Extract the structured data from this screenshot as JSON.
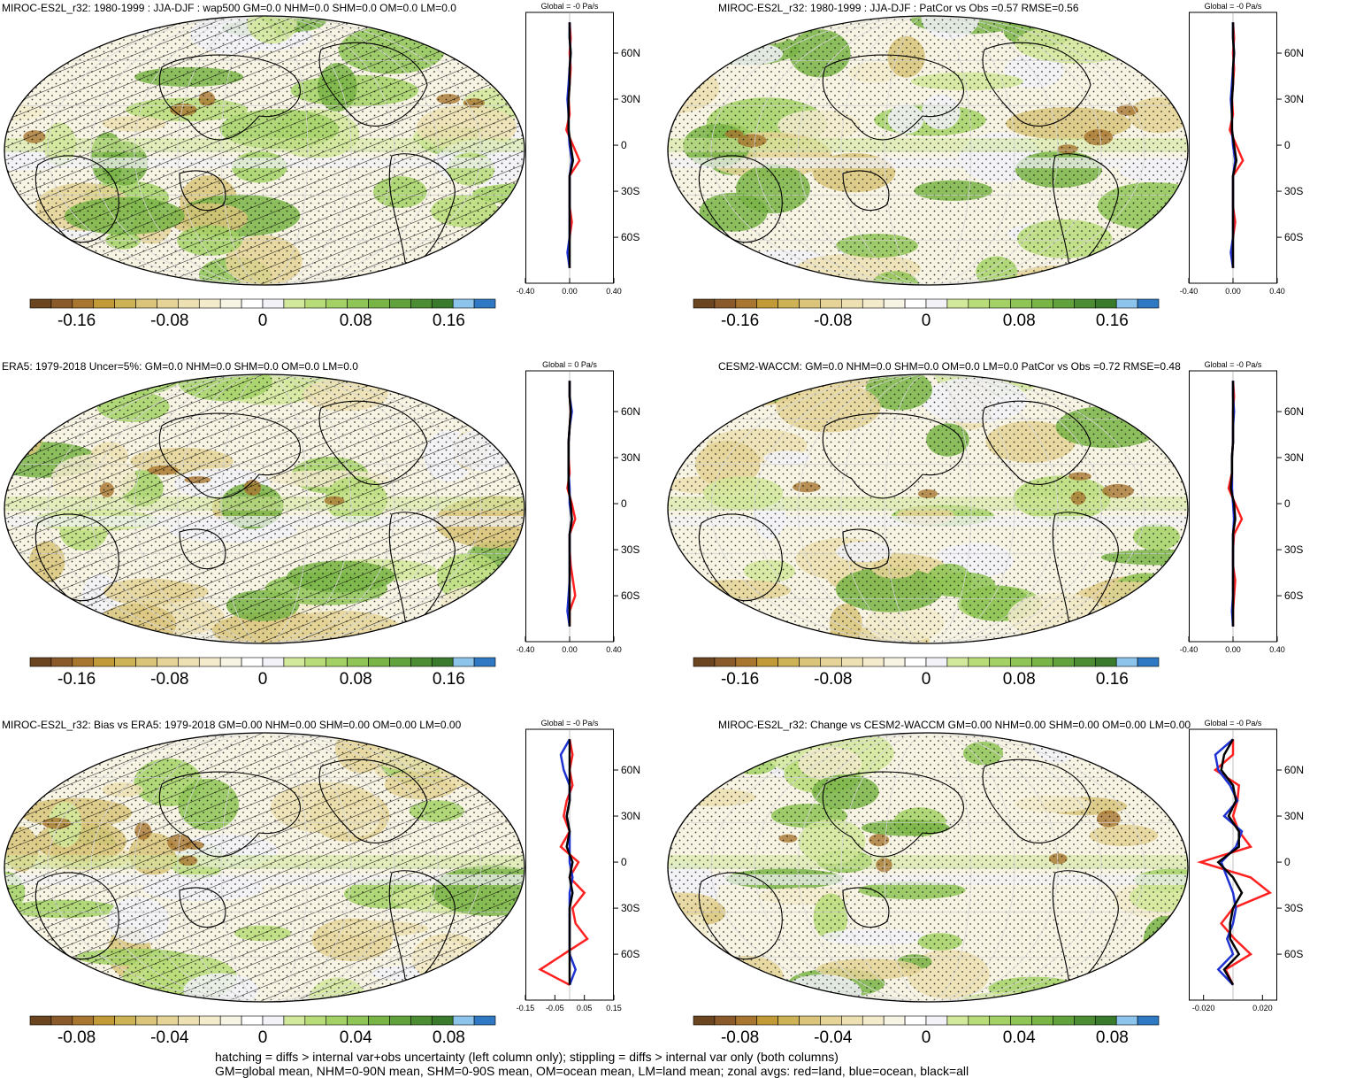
{
  "colors": {
    "scale": [
      "#6b4420",
      "#8a5a2a",
      "#a8762f",
      "#c29a38",
      "#cdb256",
      "#d9c47a",
      "#e5d397",
      "#ede0b2",
      "#f3ebcc",
      "#f8f4e4",
      "#ffffff",
      "#f2f2f8",
      "#d2e89a",
      "#b8dc78",
      "#a3d165",
      "#8fc456",
      "#79b447",
      "#62a23c",
      "#4c8c33",
      "#3a7a2c",
      "#8dc4ec",
      "#2f78c4"
    ],
    "land_line": "#ff2020",
    "ocean_line": "#1e32d2",
    "all_line": "#000000"
  },
  "footer": {
    "line1": "hatching = diffs > internal var+obs uncertainty (left column only); stippling = diffs > internal var only (both columns)",
    "line2": "GM=global mean, NHM=0-90N mean, SHM=0-90S mean, OM=ocean mean, LM=land mean; zonal avgs: red=land, blue=ocean, black=all"
  },
  "chart_data": [
    {
      "type": "heatmap",
      "title": "MIROC-ES2L_r32: 1980-1999 : JJA-DJF : wap500 GM=0.0 NHM=0.0 SHM=0.0 OM=0.0 LM=0.0",
      "colorbar_ticks": [
        "-0.16",
        "-0.08",
        "0",
        "0.08",
        "0.16"
      ],
      "colorbar_range": [
        -0.2,
        0.2
      ],
      "hatching": true,
      "zonal": {
        "title": "Global = -0 Pa/s",
        "lat_ticks": [
          "60N",
          "30N",
          "0",
          "30S",
          "60S"
        ],
        "x_ticks": [
          "-0.40",
          "0.00",
          "0.40"
        ],
        "xlim": [
          -0.4,
          0.4
        ],
        "lat": [
          80,
          70,
          60,
          50,
          40,
          30,
          20,
          10,
          0,
          -10,
          -20,
          -30,
          -40,
          -50,
          -60,
          -70,
          -80
        ],
        "land": [
          0.0,
          0.01,
          0.0,
          0.01,
          0.0,
          -0.01,
          0.0,
          -0.03,
          0.03,
          0.09,
          0.0,
          0.0,
          0.0,
          0.02,
          0.0,
          -0.01,
          0.0
        ],
        "ocean": [
          0.0,
          0.0,
          0.01,
          0.0,
          -0.01,
          -0.02,
          -0.01,
          -0.01,
          0.0,
          0.02,
          0.0,
          0.0,
          0.0,
          0.0,
          0.0,
          -0.02,
          0.0
        ],
        "all": [
          0.0,
          0.0,
          0.01,
          0.0,
          0.0,
          -0.01,
          -0.01,
          -0.01,
          0.01,
          0.03,
          0.0,
          0.0,
          0.0,
          0.0,
          0.0,
          0.0,
          0.0
        ]
      }
    },
    {
      "type": "heatmap",
      "title": "MIROC-ES2L_r32: 1980-1999 : JJA-DJF : PatCor vs Obs =0.57 RMSE=0.56",
      "colorbar_ticks": [
        "-0.16",
        "-0.08",
        "0",
        "0.08",
        "0.16"
      ],
      "colorbar_range": [
        -0.2,
        0.2
      ],
      "hatching": false,
      "zonal": {
        "title": "Global = -0 Pa/s",
        "lat_ticks": [
          "60N",
          "30N",
          "0",
          "30S",
          "60S"
        ],
        "x_ticks": [
          "-0.40",
          "0.00",
          "0.40"
        ],
        "xlim": [
          -0.4,
          0.4
        ],
        "lat": [
          80,
          70,
          60,
          50,
          40,
          30,
          20,
          10,
          0,
          -10,
          -20,
          -30,
          -40,
          -50,
          -60,
          -70,
          -80
        ],
        "land": [
          0.0,
          0.01,
          0.0,
          0.01,
          0.0,
          -0.01,
          0.0,
          -0.03,
          0.03,
          0.09,
          0.0,
          0.0,
          0.0,
          0.02,
          0.0,
          -0.01,
          0.0
        ],
        "ocean": [
          0.0,
          0.0,
          0.01,
          0.0,
          -0.01,
          -0.02,
          -0.01,
          -0.01,
          0.0,
          0.02,
          0.0,
          0.0,
          0.0,
          0.0,
          0.0,
          -0.02,
          0.0
        ],
        "all": [
          0.0,
          0.0,
          0.01,
          0.0,
          0.0,
          -0.01,
          -0.01,
          -0.01,
          0.01,
          0.03,
          0.0,
          0.0,
          0.0,
          0.0,
          0.0,
          0.0,
          0.0
        ]
      }
    },
    {
      "type": "heatmap",
      "title": "ERA5: 1979-2018 Uncer=5%: GM=0.0 NHM=0.0 SHM=0.0 OM=0.0 LM=0.0",
      "colorbar_ticks": [
        "-0.16",
        "-0.08",
        "0",
        "0.08",
        "0.16"
      ],
      "colorbar_range": [
        -0.2,
        0.2
      ],
      "hatching": true,
      "zonal": {
        "title": "Global = 0 Pa/s",
        "lat_ticks": [
          "60N",
          "30N",
          "0",
          "30S",
          "60S"
        ],
        "x_ticks": [
          "-0.40",
          "0.00",
          "0.40"
        ],
        "xlim": [
          -0.4,
          0.4
        ],
        "lat": [
          80,
          70,
          60,
          50,
          40,
          30,
          20,
          10,
          0,
          -10,
          -20,
          -30,
          -40,
          -50,
          -60,
          -70,
          -80
        ],
        "land": [
          0.0,
          0.0,
          0.01,
          0.0,
          -0.01,
          -0.01,
          0.0,
          -0.02,
          0.02,
          0.05,
          0.0,
          0.0,
          0.01,
          0.03,
          0.05,
          0.0,
          0.0
        ],
        "ocean": [
          0.0,
          0.0,
          0.02,
          0.0,
          -0.01,
          -0.01,
          -0.01,
          0.0,
          0.0,
          0.02,
          0.0,
          0.0,
          0.0,
          0.0,
          -0.01,
          -0.02,
          0.0
        ],
        "all": [
          0.0,
          0.0,
          0.01,
          0.0,
          -0.01,
          -0.01,
          -0.01,
          -0.01,
          0.01,
          0.02,
          0.0,
          0.0,
          0.0,
          0.0,
          0.0,
          0.0,
          0.0
        ]
      }
    },
    {
      "type": "heatmap",
      "title": "CESM2-WACCM: GM=0.0 NHM=0.0 SHM=0.0 OM=0.0 LM=0.0 PatCor vs Obs =0.72 RMSE=0.48",
      "colorbar_ticks": [
        "-0.16",
        "-0.08",
        "0",
        "0.08",
        "0.16"
      ],
      "colorbar_range": [
        -0.2,
        0.2
      ],
      "hatching": false,
      "zonal": {
        "title": "Global = -0 Pa/s",
        "lat_ticks": [
          "60N",
          "30N",
          "0",
          "30S",
          "60S"
        ],
        "x_ticks": [
          "-0.40",
          "0.00",
          "0.40"
        ],
        "xlim": [
          -0.4,
          0.4
        ],
        "lat": [
          80,
          70,
          60,
          50,
          40,
          30,
          20,
          10,
          0,
          -10,
          -20,
          -30,
          -40,
          -50,
          -60,
          -70,
          -80
        ],
        "land": [
          0.0,
          0.01,
          0.0,
          0.0,
          0.0,
          -0.01,
          -0.01,
          -0.04,
          0.02,
          0.08,
          0.01,
          0.0,
          0.0,
          0.02,
          0.01,
          0.0,
          0.0
        ],
        "ocean": [
          0.0,
          0.0,
          0.01,
          0.0,
          0.0,
          -0.01,
          -0.01,
          -0.01,
          0.0,
          0.01,
          0.0,
          0.0,
          0.0,
          0.0,
          0.0,
          -0.01,
          0.0
        ],
        "all": [
          0.0,
          0.0,
          0.0,
          0.0,
          0.0,
          -0.01,
          -0.01,
          -0.02,
          0.01,
          0.02,
          0.0,
          0.0,
          0.0,
          0.0,
          0.0,
          0.0,
          0.0
        ]
      }
    },
    {
      "type": "heatmap",
      "title": "MIROC-ES2L_r32: Bias vs ERA5: 1979-2018 GM=0.00 NHM=0.00 SHM=0.00 OM=0.00 LM=0.00",
      "colorbar_ticks": [
        "-0.08",
        "-0.04",
        "0",
        "0.04",
        "0.08"
      ],
      "colorbar_range": [
        -0.1,
        0.1
      ],
      "hatching": true,
      "zonal": {
        "title": "Global = -0 Pa/s",
        "lat_ticks": [
          "60N",
          "30N",
          "0",
          "30S",
          "60S"
        ],
        "x_ticks": [
          "-0.15",
          "-0.05",
          "0.05",
          "0.15"
        ],
        "xlim": [
          -0.15,
          0.15
        ],
        "lat": [
          80,
          70,
          60,
          50,
          40,
          30,
          20,
          10,
          0,
          -10,
          -20,
          -30,
          -40,
          -50,
          -60,
          -70,
          -80
        ],
        "land": [
          0.0,
          0.01,
          0.0,
          0.01,
          -0.01,
          -0.02,
          0.0,
          -0.03,
          0.03,
          0.0,
          0.05,
          0.01,
          0.02,
          0.06,
          -0.02,
          -0.1,
          0.0
        ],
        "ocean": [
          0.0,
          -0.03,
          -0.02,
          0.0,
          0.0,
          -0.01,
          0.0,
          0.0,
          0.0,
          0.01,
          0.0,
          0.0,
          0.0,
          0.0,
          0.0,
          0.02,
          0.0
        ],
        "all": [
          0.0,
          0.0,
          0.0,
          0.0,
          0.0,
          -0.01,
          0.0,
          -0.01,
          0.01,
          0.0,
          0.01,
          0.0,
          0.0,
          0.0,
          0.0,
          0.0,
          0.0
        ]
      }
    },
    {
      "type": "heatmap",
      "title": "MIROC-ES2L_r32: Change vs CESM2-WACCM GM=0.00 NHM=0.00 SHM=0.00 OM=0.00 LM=0.00",
      "colorbar_ticks": [
        "-0.08",
        "-0.04",
        "0",
        "0.04",
        "0.08"
      ],
      "colorbar_range": [
        -0.1,
        0.1
      ],
      "hatching": false,
      "zonal": {
        "title": "Global = -0 Pa/s",
        "lat_ticks": [
          "60N",
          "30N",
          "0",
          "30S",
          "60S"
        ],
        "x_ticks": [
          "-0.020",
          "0.020"
        ],
        "xlim": [
          -0.03,
          0.03
        ],
        "lat": [
          80,
          70,
          60,
          50,
          40,
          30,
          20,
          10,
          0,
          -10,
          -20,
          -30,
          -40,
          -50,
          -60,
          -70,
          -80
        ],
        "land": [
          0.0,
          0.0,
          -0.012,
          0.004,
          0.003,
          0.0,
          0.004,
          0.012,
          -0.022,
          0.012,
          0.025,
          0.0,
          -0.008,
          0.001,
          0.012,
          -0.005,
          0.0
        ],
        "ocean": [
          0.0,
          -0.012,
          -0.01,
          -0.002,
          0.003,
          -0.006,
          0.006,
          0.002,
          -0.008,
          -0.004,
          0.0,
          0.002,
          0.0,
          -0.004,
          0.0,
          -0.01,
          0.0
        ],
        "all": [
          0.0,
          -0.006,
          -0.008,
          0.0,
          0.002,
          -0.003,
          0.004,
          0.004,
          -0.01,
          0.0,
          0.006,
          0.0,
          -0.002,
          -0.002,
          0.004,
          -0.006,
          0.0
        ]
      }
    }
  ]
}
